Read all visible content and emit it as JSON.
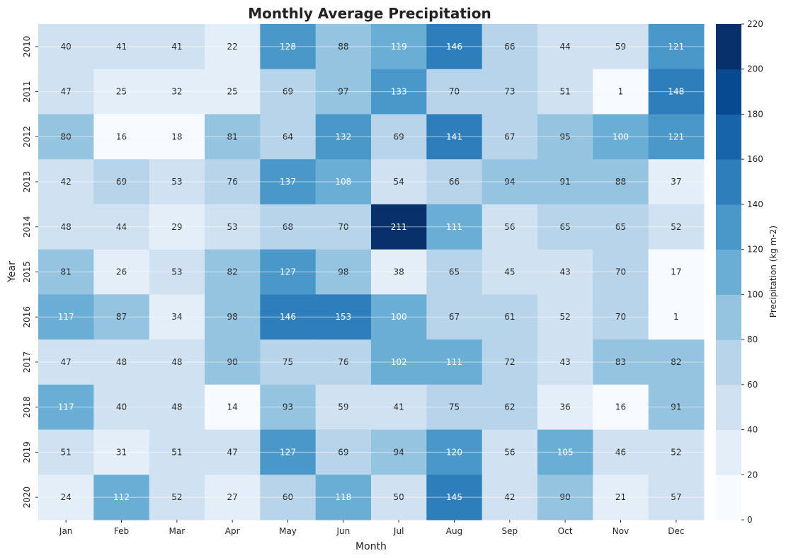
{
  "chart_data": {
    "type": "heatmap",
    "title": "Monthly Average Precipitation",
    "xlabel": "Month",
    "ylabel": "Year",
    "colorbar_label": "Precipitation (kg m-2)",
    "colormap": "Blues",
    "x_categories": [
      "Jan",
      "Feb",
      "Mar",
      "Apr",
      "May",
      "Jun",
      "Jul",
      "Aug",
      "Sep",
      "Oct",
      "Nov",
      "Dec"
    ],
    "y_categories": [
      "2010",
      "2011",
      "2012",
      "2013",
      "2014",
      "2015",
      "2016",
      "2017",
      "2018",
      "2019",
      "2020"
    ],
    "values": [
      [
        40,
        41,
        41,
        22,
        128,
        88,
        119,
        146,
        66,
        44,
        59,
        121
      ],
      [
        47,
        25,
        32,
        25,
        69,
        97,
        133,
        70,
        73,
        51,
        1,
        148
      ],
      [
        80,
        16,
        18,
        81,
        64,
        132,
        69,
        141,
        67,
        95,
        100,
        121
      ],
      [
        42,
        69,
        53,
        76,
        137,
        108,
        54,
        66,
        94,
        91,
        88,
        37
      ],
      [
        48,
        44,
        29,
        53,
        68,
        70,
        211,
        111,
        56,
        65,
        65,
        52
      ],
      [
        81,
        26,
        53,
        82,
        127,
        98,
        38,
        65,
        45,
        43,
        70,
        17
      ],
      [
        117,
        87,
        34,
        98,
        146,
        153,
        100,
        67,
        61,
        52,
        70,
        1
      ],
      [
        47,
        48,
        48,
        90,
        75,
        76,
        102,
        111,
        72,
        43,
        83,
        82
      ],
      [
        117,
        40,
        48,
        14,
        93,
        59,
        41,
        75,
        62,
        36,
        16,
        91
      ],
      [
        51,
        31,
        51,
        47,
        127,
        69,
        94,
        120,
        56,
        105,
        46,
        52
      ],
      [
        24,
        112,
        52,
        27,
        60,
        118,
        50,
        145,
        42,
        90,
        21,
        57
      ]
    ],
    "color_range": [
      0,
      220
    ],
    "colorbar_ticks": [
      0,
      20,
      40,
      60,
      80,
      100,
      120,
      140,
      160,
      180,
      200,
      220
    ],
    "bin_colors": [
      "#f7fbff",
      "#e3eef9",
      "#d0e1f2",
      "#b7d4ea",
      "#94c4df",
      "#6aaed6",
      "#4a98c9",
      "#2e7ebc",
      "#1764ab",
      "#084a91",
      "#08306b"
    ]
  }
}
